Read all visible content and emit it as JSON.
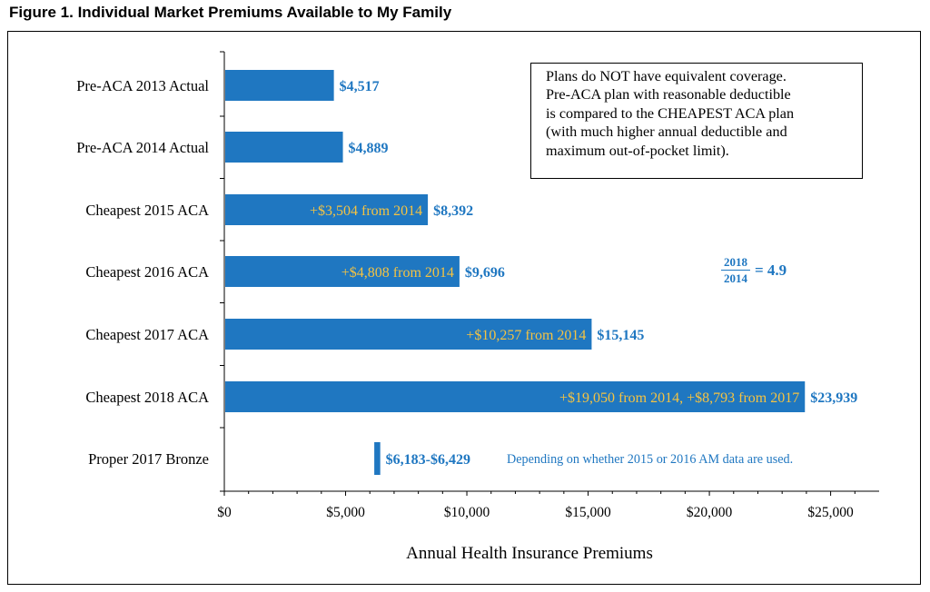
{
  "figure_title": "Figure 1.  Individual Market Premiums Available to My Family",
  "note_lines": [
    "Plans do NOT have equivalent coverage.",
    "Pre-ACA plan with reasonable deductible",
    "is compared to the CHEAPEST ACA plan",
    "(with much higher annual deductible and",
    "maximum out-of-pocket limit)."
  ],
  "ratio": {
    "numerator": "2018",
    "denominator": "2014",
    "equals": "= 4.9"
  },
  "colors": {
    "bar": "#1f77c1",
    "value_label": "#1f77c1",
    "inside_label": "#f5c342",
    "axis": "#000000"
  },
  "chart_data": {
    "type": "bar",
    "orientation": "horizontal",
    "categories": [
      "Pre-ACA 2013 Actual",
      "Pre-ACA 2014 Actual",
      "Cheapest 2015 ACA",
      "Cheapest 2016 ACA",
      "Cheapest 2017 ACA",
      "Cheapest 2018 ACA",
      "Proper 2017 Bronze"
    ],
    "values": [
      4517,
      4889,
      8392,
      9696,
      15145,
      23939,
      [
        6183,
        6429
      ]
    ],
    "value_labels": [
      "$4,517",
      "$4,889",
      "$8,392",
      "$9,696",
      "$15,145",
      "$23,939",
      "$6,183-$6,429"
    ],
    "inside_labels": [
      "",
      "",
      "+$3,504 from 2014",
      "+$4,808 from 2014",
      "+$10,257 from 2014",
      "+$19,050 from 2014, +$8,793 from 2017",
      ""
    ],
    "annotations": [
      "Depending on whether 2015 or 2016 AM data are used."
    ],
    "xlabel": "Annual Health Insurance Premiums",
    "ylabel": "",
    "xlim": [
      0,
      27000
    ],
    "xticks": [
      0,
      5000,
      10000,
      15000,
      20000,
      25000
    ],
    "xtick_labels": [
      "$0",
      "$5,000",
      "$10,000",
      "$15,000",
      "$20,000",
      "$25,000"
    ],
    "grid": false,
    "legend": "none"
  }
}
